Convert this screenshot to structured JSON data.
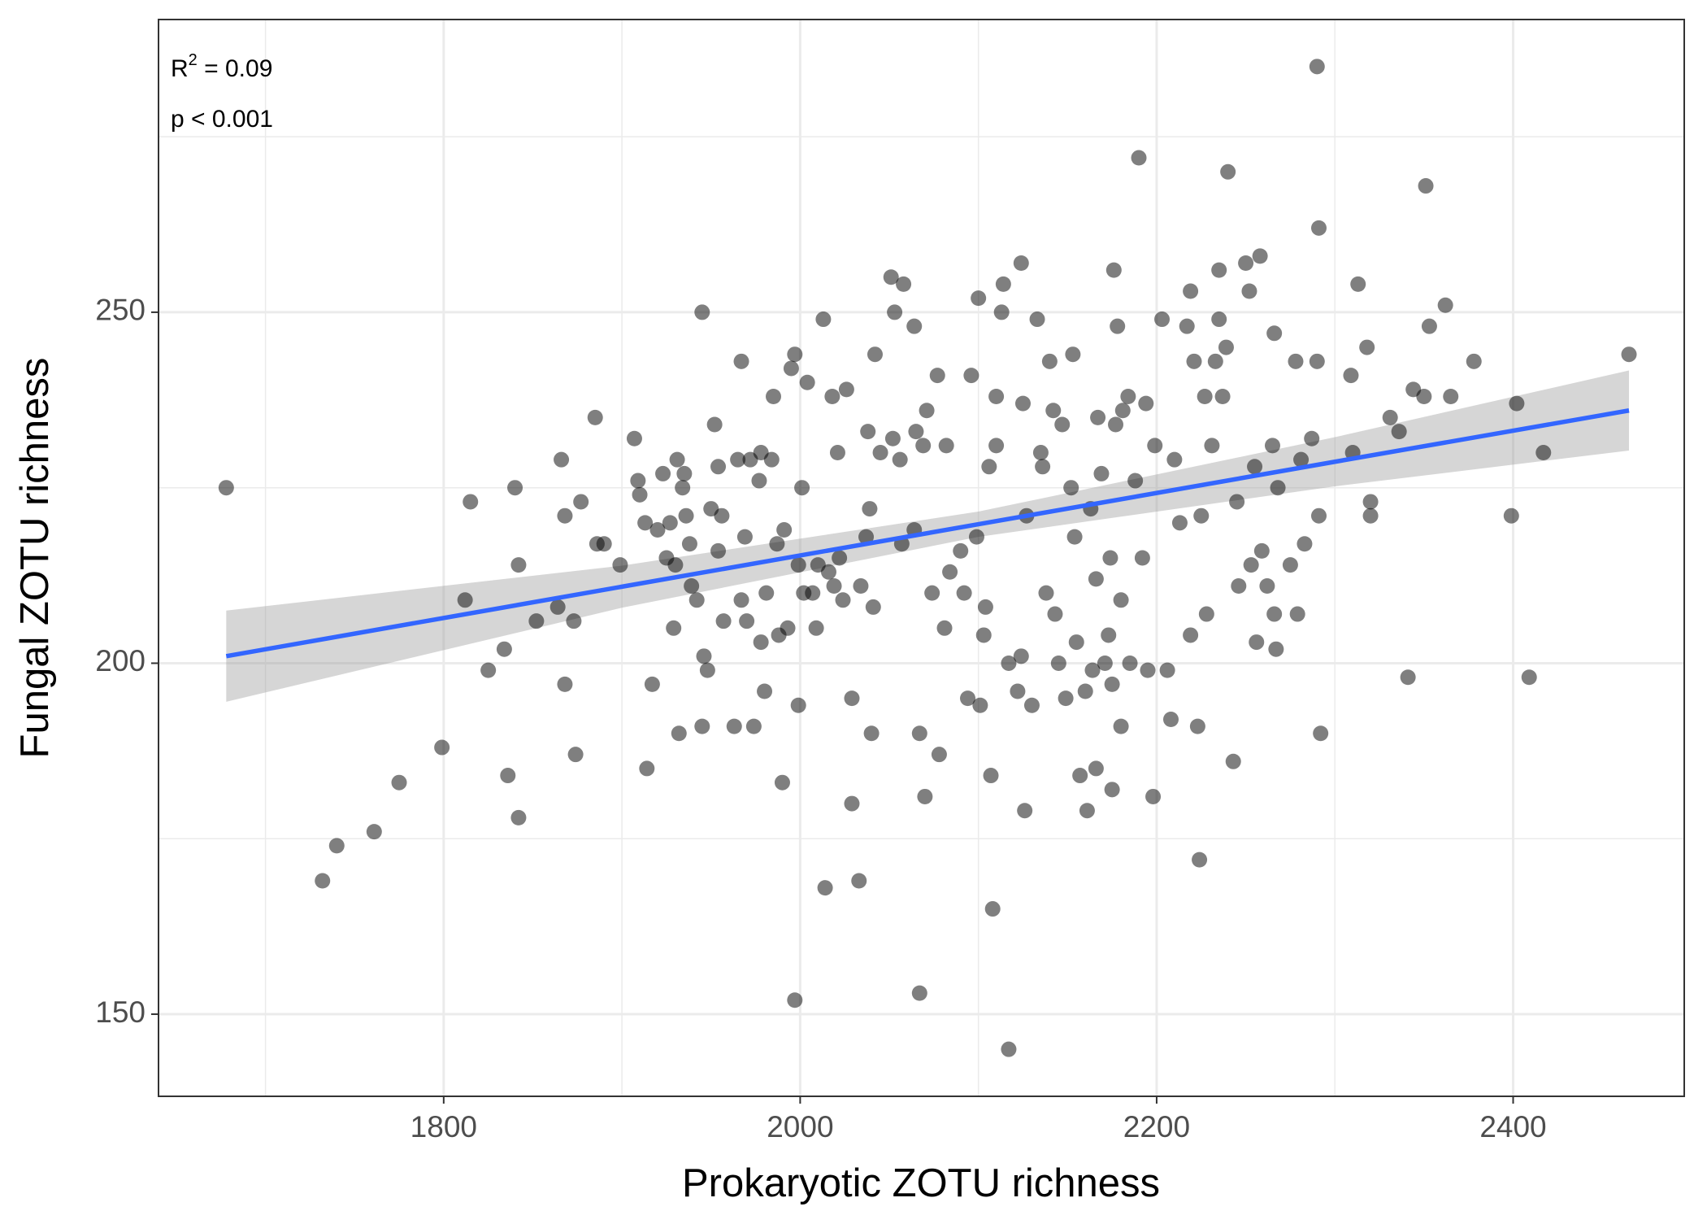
{
  "chart_data": {
    "type": "scatter",
    "x_label": "Prokaryotic ZOTU richness",
    "y_label": "Fungal ZOTU richness",
    "annotations": [
      {
        "text": "R",
        "superscript": "2",
        "suffix": " = 0.09"
      },
      {
        "text": "p < 0.001"
      }
    ],
    "xlim": [
      1640,
      2496
    ],
    "ylim": [
      138.3,
      291.7
    ],
    "xticks": [
      1800,
      2000,
      2200,
      2400
    ],
    "yticks": [
      150,
      200,
      250
    ],
    "xminor": [
      1700,
      1900,
      2100,
      2300
    ],
    "yminor": [
      175,
      225,
      275
    ],
    "grid": true,
    "series": [
      {
        "color": "#000000",
        "alpha": 0.5,
        "x": [
          1678,
          1732,
          1740,
          1761,
          1775,
          1799,
          1815,
          1812,
          1825,
          1834,
          1836,
          1840,
          1842,
          1842,
          1852,
          1864,
          1866,
          1868,
          1868,
          1873,
          1874,
          1877,
          1885,
          1886,
          1890,
          1899,
          1907,
          1909,
          1910,
          1913,
          1914,
          1917,
          1920,
          1923,
          1925,
          1927,
          1929,
          1930,
          1931,
          1932,
          1934,
          1935,
          1936,
          1938,
          1939,
          1942,
          1945,
          1946,
          1945,
          1948,
          1950,
          1952,
          1954,
          1954,
          1956,
          1957,
          1963,
          1965,
          1967,
          1967,
          1969,
          1970,
          1972,
          1974,
          1977,
          1978,
          1978,
          1980,
          1981,
          1984,
          1985,
          1987,
          1988,
          1990,
          1991,
          1993,
          1995,
          1997,
          1999,
          1997,
          1999,
          2001,
          2002,
          2004,
          2007,
          2009,
          2010,
          2013,
          2014,
          2016,
          2018,
          2019,
          2021,
          2022,
          2024,
          2026,
          2029,
          2029,
          2033,
          2034,
          2037,
          2038,
          2039,
          2040,
          2041,
          2042,
          2045,
          2051,
          2052,
          2053,
          2056,
          2057,
          2058,
          2064,
          2064,
          2065,
          2067,
          2067,
          2069,
          2070,
          2071,
          2074,
          2077,
          2078,
          2081,
          2082,
          2084,
          2090,
          2092,
          2094,
          2096,
          2099,
          2100,
          2101,
          2103,
          2104,
          2106,
          2107,
          2108,
          2110,
          2110,
          2113,
          2114,
          2117,
          2117,
          2122,
          2124,
          2124,
          2125,
          2126,
          2127,
          2130,
          2133,
          2135,
          2136,
          2138,
          2140,
          2142,
          2143,
          2145,
          2147,
          2149,
          2152,
          2153,
          2154,
          2155,
          2157,
          2160,
          2161,
          2163,
          2164,
          2166,
          2166,
          2167,
          2169,
          2171,
          2173,
          2174,
          2175,
          2175,
          2176,
          2177,
          2178,
          2180,
          2180,
          2181,
          2184,
          2185,
          2188,
          2190,
          2192,
          2194,
          2195,
          2198,
          2199,
          2203,
          2206,
          2208,
          2210,
          2213,
          2217,
          2219,
          2219,
          2221,
          2223,
          2224,
          2225,
          2227,
          2228,
          2231,
          2233,
          2235,
          2235,
          2237,
          2239,
          2240,
          2243,
          2245,
          2246,
          2250,
          2252,
          2253,
          2255,
          2256,
          2258,
          2259,
          2262,
          2265,
          2266,
          2267,
          2268,
          2266,
          2275,
          2278,
          2279,
          2281,
          2283,
          2287,
          2290,
          2290,
          2291,
          2291,
          2292,
          2309,
          2310,
          2313,
          2318,
          2320,
          2320,
          2331,
          2336,
          2341,
          2344,
          2350,
          2351,
          2353,
          2362,
          2365,
          2378,
          2399,
          2402,
          2409,
          2417,
          2465
        ],
        "values": [
          225,
          169,
          174,
          176,
          183,
          188,
          223,
          209,
          199,
          202,
          184,
          225,
          214,
          178,
          206,
          208,
          229,
          221,
          197,
          206,
          187,
          223,
          235,
          217,
          217,
          214,
          232,
          226,
          224,
          220,
          185,
          197,
          219,
          227,
          215,
          220,
          205,
          214,
          229,
          190,
          225,
          227,
          221,
          217,
          211,
          209,
          250,
          201,
          191,
          199,
          222,
          234,
          216,
          228,
          221,
          206,
          191,
          229,
          209,
          243,
          218,
          206,
          229,
          191,
          226,
          203,
          230,
          196,
          210,
          229,
          238,
          217,
          204,
          183,
          219,
          205,
          242,
          244,
          194,
          152,
          214,
          225,
          210,
          240,
          210,
          205,
          214,
          249,
          168,
          213,
          238,
          211,
          230,
          215,
          209,
          239,
          180,
          195,
          169,
          211,
          218,
          233,
          222,
          190,
          208,
          244,
          230,
          255,
          232,
          250,
          229,
          217,
          254,
          248,
          219,
          233,
          190,
          153,
          231,
          181,
          236,
          210,
          241,
          187,
          205,
          231,
          213,
          216,
          210,
          195,
          241,
          218,
          252,
          194,
          204,
          208,
          228,
          184,
          165,
          231,
          238,
          250,
          254,
          200,
          145,
          196,
          257,
          201,
          237,
          179,
          221,
          194,
          249,
          230,
          228,
          210,
          243,
          236,
          207,
          200,
          234,
          195,
          225,
          244,
          218,
          203,
          184,
          196,
          179,
          222,
          199,
          212,
          185,
          235,
          227,
          200,
          204,
          215,
          182,
          197,
          256,
          234,
          248,
          191,
          209,
          236,
          238,
          200,
          226,
          272,
          215,
          237,
          199,
          181,
          231,
          249,
          199,
          192,
          229,
          220,
          248,
          204,
          253,
          243,
          191,
          172,
          221,
          238,
          207,
          231,
          243,
          249,
          256,
          238,
          245,
          270,
          186,
          223,
          211,
          257,
          253,
          214,
          228,
          203,
          258,
          216,
          211,
          231,
          207,
          202,
          225,
          247,
          214,
          243,
          207,
          229,
          217,
          232,
          285,
          243,
          262,
          221,
          190,
          241,
          230,
          254,
          245,
          223,
          221,
          235,
          233,
          198,
          239,
          238,
          268,
          248,
          251,
          238,
          243,
          221,
          237,
          198,
          230,
          244
        ]
      }
    ],
    "fit": {
      "color": "#3366FF",
      "band_color": "#999999",
      "x": [
        1678,
        1900,
        2100,
        2300,
        2465
      ],
      "y": [
        201,
        210.9,
        219.8,
        228.7,
        236
      ],
      "lower": [
        194.5,
        207.9,
        218,
        225.2,
        230.3
      ],
      "upper": [
        207.5,
        213.9,
        221.6,
        232.2,
        241.7
      ]
    }
  }
}
